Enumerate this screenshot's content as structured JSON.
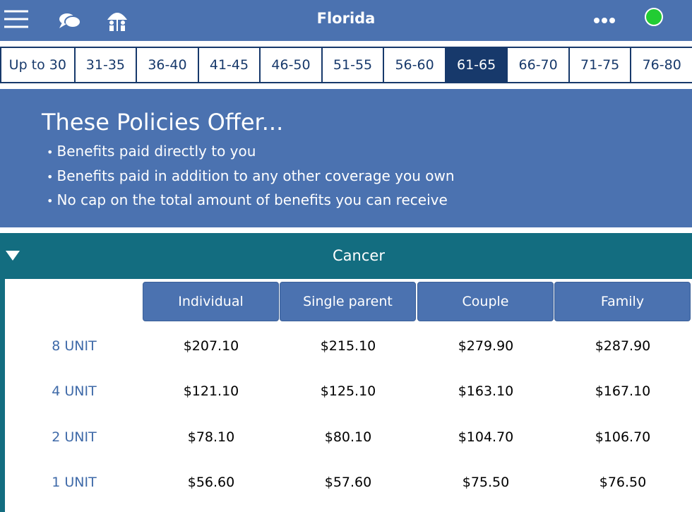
{
  "header": {
    "title": "Florida"
  },
  "age_tabs": [
    "Up to 30",
    "31-35",
    "36-40",
    "41-45",
    "46-50",
    "51-55",
    "56-60",
    "61-65",
    "66-70",
    "71-75",
    "76-80"
  ],
  "intro": {
    "title": "These Policies Offer...",
    "bullets": [
      "Benefits paid directly to you",
      "Benefits paid in addition to any other coverage you own",
      "No cap on the total amount of benefits you can receive"
    ]
  },
  "section": {
    "title": "Cancer",
    "columns": [
      "Individual",
      "Single parent",
      "Couple",
      "Family"
    ],
    "rows": [
      {
        "label": "8 UNIT",
        "cells": [
          "$207.10",
          "$215.10",
          "$279.90",
          "$287.90"
        ]
      },
      {
        "label": "4 UNIT",
        "cells": [
          "$121.10",
          "$125.10",
          "$163.10",
          "$167.10"
        ]
      },
      {
        "label": "2 UNIT",
        "cells": [
          "$78.10",
          "$80.10",
          "$104.70",
          "$106.70"
        ]
      },
      {
        "label": "1 UNIT",
        "cells": [
          "$56.60",
          "$57.60",
          "$75.50",
          "$76.50"
        ]
      }
    ]
  }
}
